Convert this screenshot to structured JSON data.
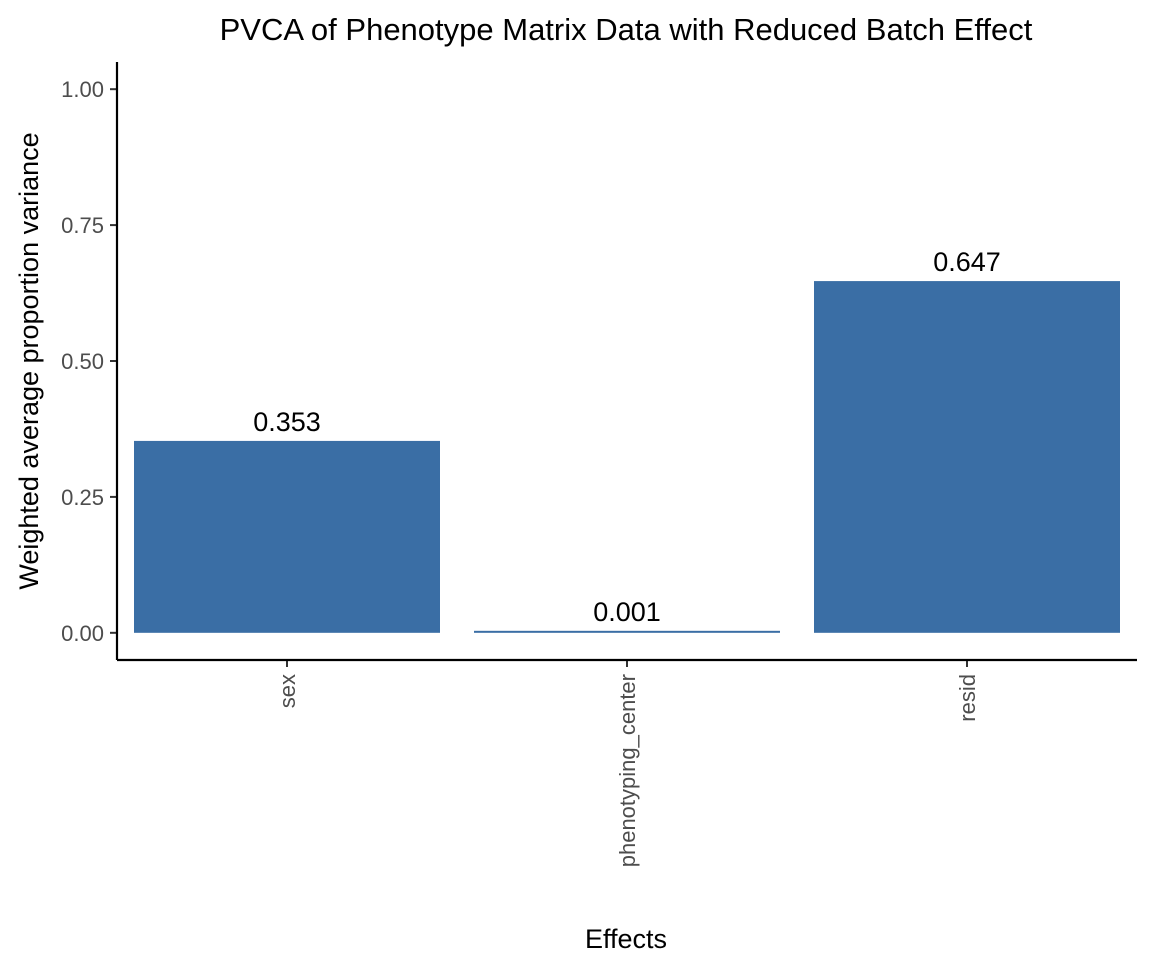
{
  "chart_data": {
    "type": "bar",
    "title": "PVCA of Phenotype Matrix Data with Reduced Batch Effect",
    "xlabel": "Effects",
    "ylabel": "Weighted average proportion variance",
    "categories": [
      "sex",
      "phenotyping_center",
      "resid"
    ],
    "values": [
      0.353,
      0.001,
      0.647
    ],
    "data_labels": [
      "0.353",
      "0.001",
      "0.647"
    ],
    "y_ticks": [
      0,
      0.25,
      0.5,
      0.75,
      1.0
    ],
    "y_tick_labels": [
      "0.00",
      "0.25",
      "0.50",
      "0.75",
      "1.00"
    ],
    "ylim": [
      -0.05,
      1.05
    ],
    "grid": false,
    "legend": "none",
    "bar_color": "#3A6EA5"
  }
}
